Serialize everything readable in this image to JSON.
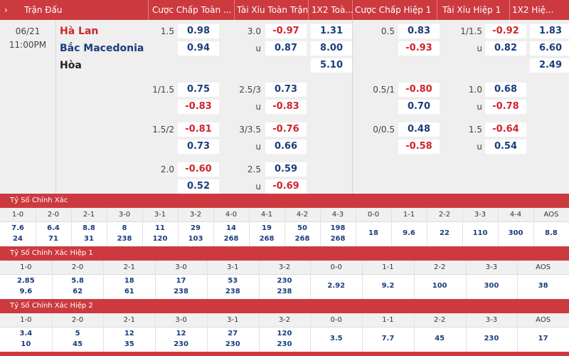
{
  "header": {
    "chevron": "›",
    "cols": [
      "Trận Đấu",
      "Cược Chấp Toàn ...",
      "Tài Xỉu Toàn Trận",
      "1X2 Toà...",
      "Cược Chấp Hiệp 1",
      "Tài Xỉu Hiệp 1",
      "1X2 Hiệ..."
    ]
  },
  "match": {
    "date": "06/21",
    "time": "11:00PM",
    "home": "Hà Lan",
    "away": "Bắc Macedonia",
    "draw": "Hòa",
    "colors": {
      "home": "#d0232b",
      "away": "#1a3d7c",
      "draw": "#222222"
    }
  },
  "odds": {
    "rows": [
      {
        "hcp_line": "1.5",
        "hcp": [
          "0.98",
          "0.94"
        ],
        "ou_line": "3.0",
        "ou_u": "u",
        "ou": [
          "-0.97",
          "0.87"
        ],
        "x12": [
          "1.31",
          "8.00",
          "5.10"
        ],
        "h1_hcp_line": "0.5",
        "h1_hcp": [
          "0.83",
          "-0.93"
        ],
        "h1_ou_line": "1/1.5",
        "h1_ou_u": "u",
        "h1_ou": [
          "-0.92",
          "0.82"
        ],
        "h1_x12": [
          "1.83",
          "6.60",
          "2.49"
        ]
      },
      {
        "hcp_line": "1/1.5",
        "hcp": [
          "0.75",
          "-0.83"
        ],
        "ou_line": "2.5/3",
        "ou_u": "u",
        "ou": [
          "0.73",
          "-0.83"
        ],
        "h1_hcp_line": "0.5/1",
        "h1_hcp": [
          "-0.80",
          "0.70"
        ],
        "h1_ou_line": "1.0",
        "h1_ou_u": "u",
        "h1_ou": [
          "0.68",
          "-0.78"
        ]
      },
      {
        "hcp_line": "1.5/2",
        "hcp": [
          "-0.81",
          "0.73"
        ],
        "ou_line": "3/3.5",
        "ou_u": "u",
        "ou": [
          "-0.76",
          "0.66"
        ],
        "h1_hcp_line": "0/0.5",
        "h1_hcp": [
          "0.48",
          "-0.58"
        ],
        "h1_ou_line": "1.5",
        "h1_ou_u": "u",
        "h1_ou": [
          "-0.64",
          "0.54"
        ]
      },
      {
        "hcp_line": "2.0",
        "hcp": [
          "-0.60",
          "0.52"
        ],
        "ou_line": "2.5",
        "ou_u": "u",
        "ou": [
          "0.59",
          "-0.69"
        ]
      }
    ]
  },
  "score_full": {
    "title": "Tỷ Số Chính Xác",
    "headers": [
      "1-0",
      "2-0",
      "2-1",
      "3-0",
      "3-1",
      "3-2",
      "4-0",
      "4-1",
      "4-2",
      "4-3",
      "0-0",
      "1-1",
      "2-2",
      "3-3",
      "4-4",
      "AOS"
    ],
    "top": [
      "7.6",
      "6.4",
      "8.8",
      "8",
      "11",
      "29",
      "14",
      "19",
      "50",
      "198",
      "18",
      "9.6",
      "22",
      "110",
      "300",
      "8.8"
    ],
    "bottom": [
      "24",
      "71",
      "31",
      "238",
      "120",
      "103",
      "268",
      "268",
      "268",
      "268",
      "",
      "",
      "",
      "",
      "",
      ""
    ]
  },
  "score_h1": {
    "title": "Tỷ Số Chính Xác Hiệp 1",
    "headers": [
      "1-0",
      "2-0",
      "2-1",
      "3-0",
      "3-1",
      "3-2",
      "0-0",
      "1-1",
      "2-2",
      "3-3",
      "AOS"
    ],
    "top": [
      "2.85",
      "5.8",
      "18",
      "17",
      "53",
      "230",
      "2.92",
      "9.2",
      "100",
      "300",
      "38"
    ],
    "bottom": [
      "9.6",
      "62",
      "61",
      "238",
      "238",
      "238",
      "",
      "",
      "",
      "",
      ""
    ]
  },
  "score_h2": {
    "title": "Tỷ Số Chính Xác Hiệp 2",
    "headers": [
      "1-0",
      "2-0",
      "2-1",
      "3-0",
      "3-1",
      "3-2",
      "0-0",
      "1-1",
      "2-2",
      "3-3",
      "AOS"
    ],
    "top": [
      "3.4",
      "5",
      "12",
      "12",
      "27",
      "120",
      "3.5",
      "7.7",
      "45",
      "230",
      "17"
    ],
    "bottom": [
      "10",
      "45",
      "35",
      "230",
      "230",
      "230",
      "",
      "",
      "",
      "",
      ""
    ]
  }
}
